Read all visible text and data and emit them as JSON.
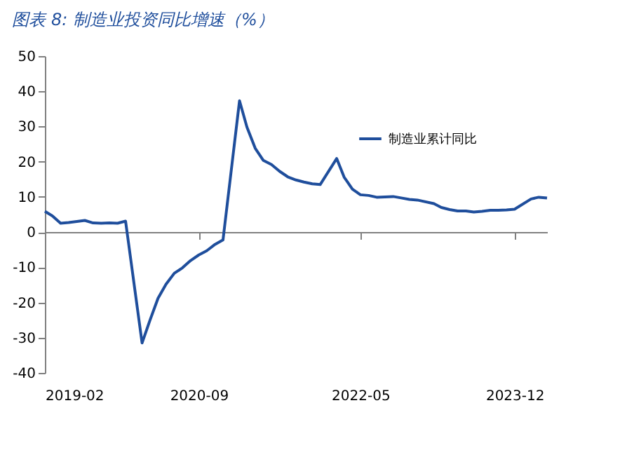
{
  "chart_data": {
    "type": "line",
    "title": "图表 8:  制造业投资同比增速（%）",
    "x": [
      "2019-02",
      "2019-03",
      "2019-04",
      "2019-05",
      "2019-06",
      "2019-07",
      "2019-08",
      "2019-09",
      "2019-10",
      "2019-11",
      "2019-12",
      "2020-02",
      "2020-03",
      "2020-04",
      "2020-05",
      "2020-06",
      "2020-07",
      "2020-08",
      "2020-09",
      "2020-10",
      "2020-11",
      "2020-12",
      "2021-02",
      "2021-03",
      "2021-04",
      "2021-05",
      "2021-06",
      "2021-07",
      "2021-08",
      "2021-09",
      "2021-10",
      "2021-11",
      "2021-12",
      "2022-02",
      "2022-03",
      "2022-04",
      "2022-05",
      "2022-06",
      "2022-07",
      "2022-08",
      "2022-09",
      "2022-10",
      "2022-11",
      "2022-12",
      "2023-02",
      "2023-03",
      "2023-04",
      "2023-05",
      "2023-06",
      "2023-07",
      "2023-08",
      "2023-09",
      "2023-10",
      "2023-11",
      "2023-12",
      "2024-02",
      "2024-03",
      "2024-04"
    ],
    "series": [
      {
        "name": "制造业累计同比",
        "color": "#1f4e9c",
        "values": [
          5.9,
          4.6,
          2.5,
          2.7,
          3.0,
          3.3,
          2.6,
          2.5,
          2.6,
          2.5,
          3.1,
          -31.5,
          -25.2,
          -18.8,
          -14.8,
          -11.7,
          -10.2,
          -8.1,
          -6.5,
          -5.3,
          -3.5,
          -2.2,
          37.3,
          29.8,
          23.8,
          20.4,
          19.2,
          17.3,
          15.7,
          14.8,
          14.2,
          13.7,
          13.5,
          20.9,
          15.6,
          12.2,
          10.6,
          10.4,
          9.9,
          10.0,
          10.1,
          9.7,
          9.3,
          9.1,
          8.1,
          7.0,
          6.4,
          6.0,
          6.0,
          5.7,
          5.9,
          6.2,
          6.2,
          6.3,
          6.5,
          9.4,
          9.9,
          9.7
        ]
      }
    ],
    "xlim": [
      "2019-02",
      "2024-04"
    ],
    "xticks": [
      "2019-02",
      "2020-09",
      "2022-05",
      "2023-12"
    ],
    "ylim": [
      -40,
      50
    ],
    "yticks": [
      -40,
      -30,
      -20,
      -10,
      0,
      10,
      20,
      30,
      40,
      50
    ],
    "legend": "top right"
  }
}
